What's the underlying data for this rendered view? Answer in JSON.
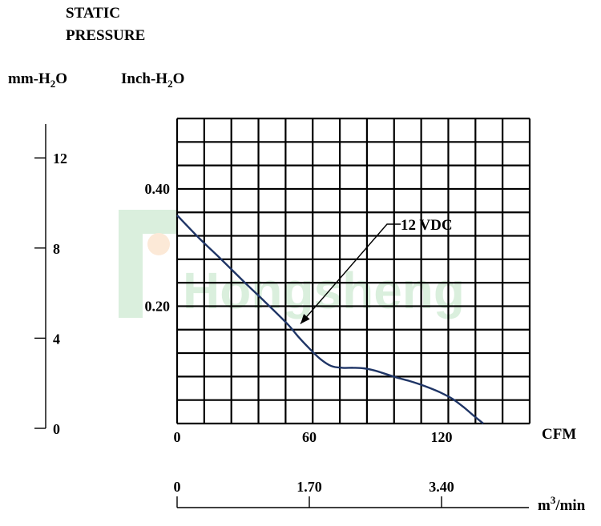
{
  "chart_data": {
    "type": "line",
    "title_lines": [
      "STATIC",
      "PRESSURE"
    ],
    "left_axis_label": "mm-H2O",
    "y_axis_label": "Inch-H2O",
    "x_axis_label": "CFM",
    "secondary_x_axis_label": "m3/min",
    "watermark": "Hongsheng",
    "mm_ticks": [
      "12",
      "8",
      "4",
      "0"
    ],
    "mm_tick_values": [
      12,
      8,
      4,
      0
    ],
    "mm_range": [
      0,
      13.5
    ],
    "y_ticks": [
      "0.40",
      "0.20"
    ],
    "y_tick_values": [
      0.4,
      0.2
    ],
    "ylim": [
      0,
      0.52
    ],
    "x_ticks": [
      "0",
      "60",
      "120"
    ],
    "x_tick_values": [
      0,
      60,
      120
    ],
    "xlim": [
      0,
      160
    ],
    "m3_ticks": [
      "0",
      "1.70",
      "3.40"
    ],
    "m3_tick_values": [
      0,
      1.7,
      3.4
    ],
    "grid": true,
    "grid_cols": 13,
    "grid_rows": 13,
    "series": [
      {
        "name": "12 VDC",
        "color": "#1f3566",
        "x": [
          0,
          10,
          20,
          30,
          40,
          50,
          55,
          60,
          65,
          70,
          75,
          80,
          85,
          90,
          95,
          100,
          105,
          110,
          115,
          120,
          125,
          130,
          135,
          139
        ],
        "y": [
          0.355,
          0.316,
          0.28,
          0.243,
          0.207,
          0.17,
          0.148,
          0.128,
          0.11,
          0.098,
          0.095,
          0.095,
          0.094,
          0.09,
          0.084,
          0.078,
          0.073,
          0.067,
          0.06,
          0.052,
          0.042,
          0.028,
          0.012,
          0.0
        ]
      }
    ],
    "annotation": {
      "text": "12 VDC",
      "points_to_x": 56,
      "points_to_y": 0.17
    }
  }
}
